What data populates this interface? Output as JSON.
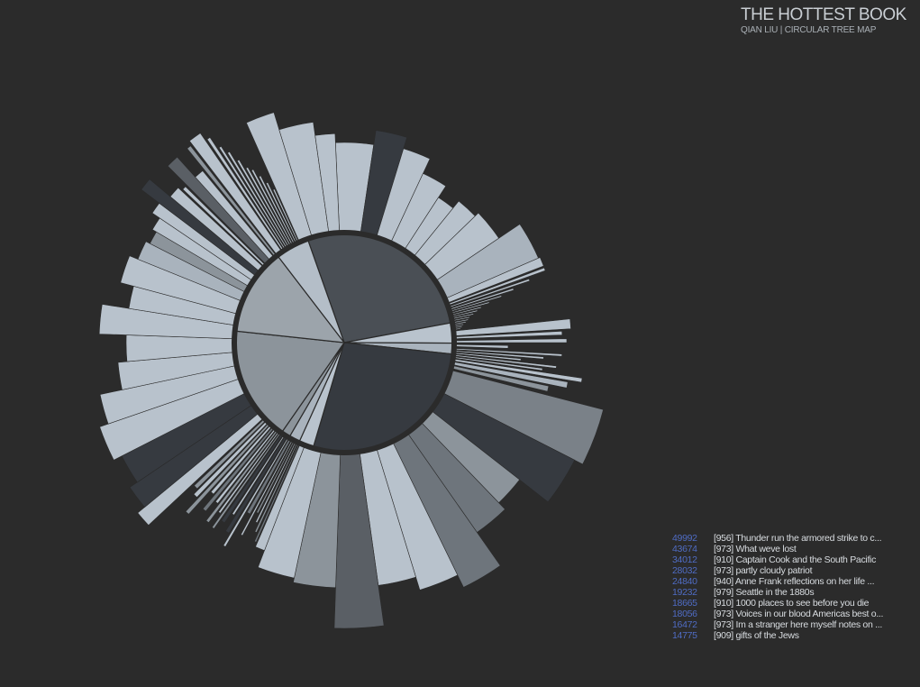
{
  "header": {
    "title": "THE HOTTEST BOOK",
    "subtitle": "QIAN LIU | CIRCULAR TREE MAP"
  },
  "colors": {
    "background": "#2b2b2b",
    "ring": "#2b2b2b",
    "accent_count": "#4f6cc4",
    "palette": [
      "#b9c3cd",
      "#a9b3bd",
      "#8c949b",
      "#6e757c",
      "#4a4f55",
      "#363a40"
    ]
  },
  "chart_data": {
    "type": "circular treemap",
    "title": "THE HOTTEST BOOK",
    "subtitle": "QIAN LIU | CIRCULAR TREE MAP",
    "inner_categories": [
      {
        "share": 0.275,
        "color": "#4a4f55"
      },
      {
        "share": 0.03,
        "color": "#b9c3cd"
      },
      {
        "share": 0.016,
        "color": "#a9b3bd"
      },
      {
        "share": 0.279,
        "color": "#363a40"
      },
      {
        "share": 0.022,
        "color": "#b9c3cd"
      },
      {
        "share": 0.016,
        "color": "#a9b3bd"
      },
      {
        "share": 0.013,
        "color": "#8c949b"
      },
      {
        "share": 0.17,
        "color": "#8c949b"
      },
      {
        "share": 0.129,
        "color": "#9ca4ab"
      },
      {
        "share": 0.05,
        "color": "#b4bec8"
      }
    ],
    "wedges": [
      {
        "start": -2.5,
        "end": 8.5,
        "length": 100,
        "color": "#b8c2cc"
      },
      {
        "start": 8.5,
        "end": 17,
        "length": 116,
        "color": "#363a40"
      },
      {
        "start": 17,
        "end": 25,
        "length": 103,
        "color": "#b8c2cc"
      },
      {
        "start": 25,
        "end": 33,
        "length": 85,
        "color": "#b8c2cc"
      },
      {
        "start": 33,
        "end": 39,
        "length": 70,
        "color": "#b8c2cc"
      },
      {
        "start": 39,
        "end": 46,
        "length": 80,
        "color": "#b8c2cc"
      },
      {
        "start": 46,
        "end": 56,
        "length": 85,
        "color": "#b8c2cc"
      },
      {
        "start": 56,
        "end": 66.5,
        "length": 113,
        "color": "#a9b3bd"
      },
      {
        "start": 66.5,
        "end": 69,
        "length": 115,
        "color": "#b8c2cc"
      },
      {
        "start": 69.5,
        "end": 70.3,
        "length": 115,
        "color": "#b8c2cc"
      },
      {
        "start": 71,
        "end": 71.6,
        "length": 95,
        "color": "#b8c2cc"
      },
      {
        "start": 72.2,
        "end": 72.8,
        "length": 75,
        "color": "#b8c2cc"
      },
      {
        "start": 73.3,
        "end": 73.8,
        "length": 60,
        "color": "#b8c2cc"
      },
      {
        "start": 74.3,
        "end": 74.8,
        "length": 45,
        "color": "#b8c2cc"
      },
      {
        "start": 75.3,
        "end": 75.8,
        "length": 35,
        "color": "#b8c2cc"
      },
      {
        "start": 76.3,
        "end": 76.8,
        "length": 30,
        "color": "#b8c2cc"
      },
      {
        "start": 77.3,
        "end": 77.8,
        "length": 25,
        "color": "#b8c2cc"
      },
      {
        "start": 78.3,
        "end": 78.8,
        "length": 20,
        "color": "#b8c2cc"
      },
      {
        "start": 79.3,
        "end": 79.8,
        "length": 18,
        "color": "#b8c2cc"
      },
      {
        "start": 80.2,
        "end": 80.7,
        "length": 15,
        "color": "#b8c2cc"
      },
      {
        "start": 81.1,
        "end": 81.6,
        "length": 12,
        "color": "#b8c2cc"
      },
      {
        "start": 82,
        "end": 82.5,
        "length": 10,
        "color": "#b8c2cc"
      },
      {
        "start": 82.9,
        "end": 83.4,
        "length": 8,
        "color": "#b8c2cc"
      },
      {
        "start": 84,
        "end": 86.5,
        "length": 130,
        "color": "#b8c2cc"
      },
      {
        "start": 87,
        "end": 88,
        "length": 120,
        "color": "#b8c2cc"
      },
      {
        "start": 89,
        "end": 90,
        "length": 125,
        "color": "#b8c2cc"
      },
      {
        "start": 91,
        "end": 92,
        "length": 60,
        "color": "#b8c2cc"
      },
      {
        "start": 93,
        "end": 93.6,
        "length": 120,
        "color": "#b8c2cc"
      },
      {
        "start": 94.1,
        "end": 94.7,
        "length": 100,
        "color": "#b8c2cc"
      },
      {
        "start": 95.2,
        "end": 95.8,
        "length": 75,
        "color": "#b8c2cc"
      },
      {
        "start": 96.3,
        "end": 96.9,
        "length": 115,
        "color": "#b8c2cc"
      },
      {
        "start": 97.4,
        "end": 98,
        "length": 100,
        "color": "#b8c2cc"
      },
      {
        "start": 98.5,
        "end": 99.5,
        "length": 145,
        "color": "#b8c2cc"
      },
      {
        "start": 100,
        "end": 101.5,
        "length": 130,
        "color": "#a9b3bd"
      },
      {
        "start": 102,
        "end": 103.5,
        "length": 110,
        "color": "#8c949b"
      },
      {
        "start": 104.5,
        "end": 117,
        "length": 175,
        "color": "#7a8188"
      },
      {
        "start": 117,
        "end": 128,
        "length": 165,
        "color": "#363a40"
      },
      {
        "start": 128,
        "end": 136,
        "length": 125,
        "color": "#8c949b"
      },
      {
        "start": 136,
        "end": 145,
        "length": 135,
        "color": "#6e757c"
      },
      {
        "start": 145,
        "end": 154,
        "length": 180,
        "color": "#6e757c"
      },
      {
        "start": 154,
        "end": 163,
        "length": 165,
        "color": "#b8c2cc"
      },
      {
        "start": 163,
        "end": 172,
        "length": 150,
        "color": "#b8c2cc"
      },
      {
        "start": 172,
        "end": 182,
        "length": 195,
        "color": "#5a5f65"
      },
      {
        "start": 182,
        "end": 192,
        "length": 150,
        "color": "#8c949b"
      },
      {
        "start": 192,
        "end": 201,
        "length": 145,
        "color": "#b8c2cc"
      },
      {
        "start": 201,
        "end": 203.5,
        "length": 125,
        "color": "#b8c2cc"
      },
      {
        "start": 203.8,
        "end": 204.3,
        "length": 120,
        "color": "#6e757c"
      },
      {
        "start": 204.8,
        "end": 205.3,
        "length": 110,
        "color": "#8c949b"
      },
      {
        "start": 205.8,
        "end": 206.3,
        "length": 100,
        "color": "#b8c2cc"
      },
      {
        "start": 206.8,
        "end": 207.3,
        "length": 90,
        "color": "#8c949b"
      },
      {
        "start": 207.8,
        "end": 208.3,
        "length": 120,
        "color": "#b8c2cc"
      },
      {
        "start": 208.8,
        "end": 209.8,
        "length": 95,
        "color": "#6e757c"
      },
      {
        "start": 210.2,
        "end": 210.8,
        "length": 140,
        "color": "#b8c2cc"
      },
      {
        "start": 211.2,
        "end": 212.2,
        "length": 125,
        "color": "#363a40"
      },
      {
        "start": 212.6,
        "end": 213.2,
        "length": 105,
        "color": "#b8c2cc"
      },
      {
        "start": 213.6,
        "end": 214.6,
        "length": 118,
        "color": "#363a40"
      },
      {
        "start": 215,
        "end": 215.6,
        "length": 130,
        "color": "#8c949b"
      },
      {
        "start": 216,
        "end": 216.6,
        "length": 112,
        "color": "#b8c2cc"
      },
      {
        "start": 217,
        "end": 217.8,
        "length": 128,
        "color": "#8c949b"
      },
      {
        "start": 218.2,
        "end": 219,
        "length": 105,
        "color": "#b8c2cc"
      },
      {
        "start": 219.4,
        "end": 220.4,
        "length": 120,
        "color": "#6e757c"
      },
      {
        "start": 220.8,
        "end": 221.8,
        "length": 100,
        "color": "#b8c2cc"
      },
      {
        "start": 222.2,
        "end": 223.2,
        "length": 135,
        "color": "#8c949b"
      },
      {
        "start": 223.6,
        "end": 224.8,
        "length": 115,
        "color": "#b8c2cc"
      },
      {
        "start": 225.2,
        "end": 226.4,
        "length": 108,
        "color": "#8c949b"
      },
      {
        "start": 227,
        "end": 230.5,
        "length": 175,
        "color": "#b8c2cc"
      },
      {
        "start": 230.5,
        "end": 236,
        "length": 165,
        "color": "#363a40"
      },
      {
        "start": 236,
        "end": 243,
        "length": 155,
        "color": "#363a40"
      },
      {
        "start": 243,
        "end": 251,
        "length": 165,
        "color": "#b8c2cc"
      },
      {
        "start": 251,
        "end": 258,
        "length": 155,
        "color": "#b8c2cc"
      },
      {
        "start": 258,
        "end": 265,
        "length": 130,
        "color": "#b8c2cc"
      },
      {
        "start": 265,
        "end": 272,
        "length": 120,
        "color": "#b8c2cc"
      },
      {
        "start": 272,
        "end": 279,
        "length": 150,
        "color": "#b8c2cc"
      },
      {
        "start": 279,
        "end": 285,
        "length": 120,
        "color": "#b8c2cc"
      },
      {
        "start": 285,
        "end": 292,
        "length": 135,
        "color": "#b8c2cc"
      },
      {
        "start": 292,
        "end": 297,
        "length": 125,
        "color": "#a9b3bd"
      },
      {
        "start": 297,
        "end": 300.5,
        "length": 120,
        "color": "#8c949b"
      },
      {
        "start": 300.5,
        "end": 304,
        "length": 125,
        "color": "#b8c2cc"
      },
      {
        "start": 304,
        "end": 307,
        "length": 135,
        "color": "#b8c2cc"
      },
      {
        "start": 307,
        "end": 310,
        "length": 160,
        "color": "#363a40"
      },
      {
        "start": 310,
        "end": 313,
        "length": 130,
        "color": "#b8c2cc"
      },
      {
        "start": 313.5,
        "end": 314.5,
        "length": 125,
        "color": "#b8c2cc"
      },
      {
        "start": 315,
        "end": 318,
        "length": 155,
        "color": "#5a5f65"
      },
      {
        "start": 318,
        "end": 320.5,
        "length": 125,
        "color": "#b8c2cc"
      },
      {
        "start": 321,
        "end": 322,
        "length": 155,
        "color": "#8c949b"
      },
      {
        "start": 322.5,
        "end": 325.5,
        "length": 160,
        "color": "#b8c2cc"
      },
      {
        "start": 326,
        "end": 326.8,
        "length": 150,
        "color": "#b8c2cc"
      },
      {
        "start": 327.3,
        "end": 327.9,
        "length": 135,
        "color": "#b8c2cc"
      },
      {
        "start": 328.4,
        "end": 329,
        "length": 125,
        "color": "#b8c2cc"
      },
      {
        "start": 329.5,
        "end": 330.1,
        "length": 112,
        "color": "#b8c2cc"
      },
      {
        "start": 330.6,
        "end": 331.2,
        "length": 100,
        "color": "#b8c2cc"
      },
      {
        "start": 331.7,
        "end": 332.3,
        "length": 95,
        "color": "#b8c2cc"
      },
      {
        "start": 332.8,
        "end": 333.4,
        "length": 85,
        "color": "#b8c2cc"
      },
      {
        "start": 333.9,
        "end": 334.5,
        "length": 75,
        "color": "#b8c2cc"
      },
      {
        "start": 335,
        "end": 335.6,
        "length": 65,
        "color": "#b8c2cc"
      },
      {
        "start": 336,
        "end": 343,
        "length": 145,
        "color": "#b8c2cc"
      },
      {
        "start": 343,
        "end": 352,
        "length": 125,
        "color": "#b8c2cc"
      },
      {
        "start": 352,
        "end": 357.5,
        "length": 110,
        "color": "#b8c2cc"
      }
    ],
    "top_books": [
      {
        "count": "49992",
        "code": "[956]",
        "title": "Thunder run the armored strike to c..."
      },
      {
        "count": "43674",
        "code": "[973]",
        "title": "What weve lost"
      },
      {
        "count": "34012",
        "code": "[910]",
        "title": "Captain Cook and the South Pacific"
      },
      {
        "count": "28032",
        "code": "[973]",
        "title": "partly cloudy patriot"
      },
      {
        "count": "24840",
        "code": "[940]",
        "title": "Anne Frank reflections on her life ..."
      },
      {
        "count": "19232",
        "code": "[979]",
        "title": "Seattle in the 1880s"
      },
      {
        "count": "18665",
        "code": "[910]",
        "title": "1000 places to see before you die"
      },
      {
        "count": "18056",
        "code": "[973]",
        "title": "Voices in our blood Americas best o..."
      },
      {
        "count": "16472",
        "code": "[973]",
        "title": "Im a stranger here myself notes on ..."
      },
      {
        "count": "14775",
        "code": "[909]",
        "title": "gifts of the Jews"
      }
    ]
  }
}
